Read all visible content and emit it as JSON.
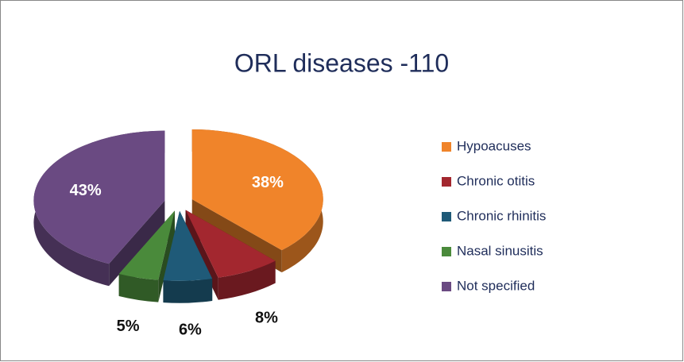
{
  "chart_data": {
    "type": "pie",
    "title": "ORL diseases -110",
    "categories": [
      "Hypoacuses",
      "Chronic otitis",
      "Chronic rhinitis",
      "Nasal sinusitis",
      "Not specified"
    ],
    "values": [
      38,
      8,
      6,
      5,
      43
    ],
    "value_labels": [
      "38%",
      "8%",
      "6%",
      "5%",
      "43%"
    ],
    "colors": [
      "#f0842a",
      "#a3272f",
      "#1f5a78",
      "#4a8a3b",
      "#6a4a82"
    ],
    "legend": "right"
  }
}
